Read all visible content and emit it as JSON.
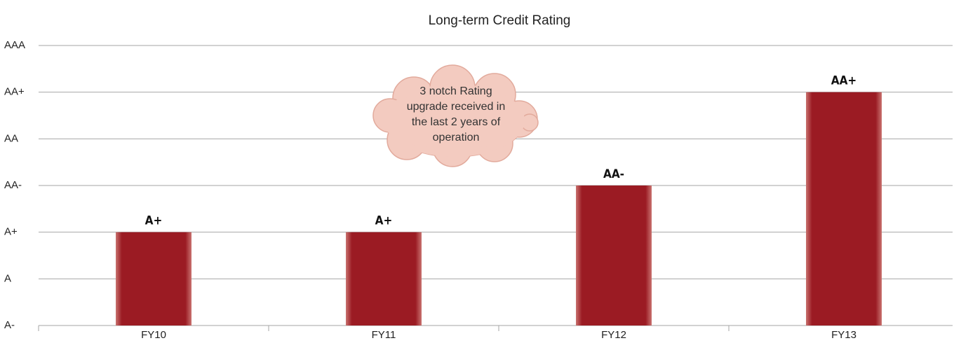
{
  "chart_data": {
    "type": "bar",
    "title": "Long-term Credit Rating",
    "categories": [
      "FY10",
      "FY11",
      "FY12",
      "FY13"
    ],
    "values": [
      2,
      2,
      3,
      5
    ],
    "value_labels": [
      "A+",
      "A+",
      "AA-",
      "AA+"
    ],
    "color": "#9b1b23",
    "ylim": [
      0,
      6
    ],
    "yticks": [
      {
        "value": 0,
        "label": "A-"
      },
      {
        "value": 1,
        "label": "A"
      },
      {
        "value": 2,
        "label": "A+"
      },
      {
        "value": 3,
        "label": "AA-"
      },
      {
        "value": 4,
        "label": "AA"
      },
      {
        "value": 5,
        "label": "AA+"
      },
      {
        "value": 6,
        "label": "AAA"
      }
    ],
    "grid": true,
    "annotation": [
      "3 notch Rating",
      "upgrade received in",
      "the last 2 years of",
      "operation"
    ]
  }
}
